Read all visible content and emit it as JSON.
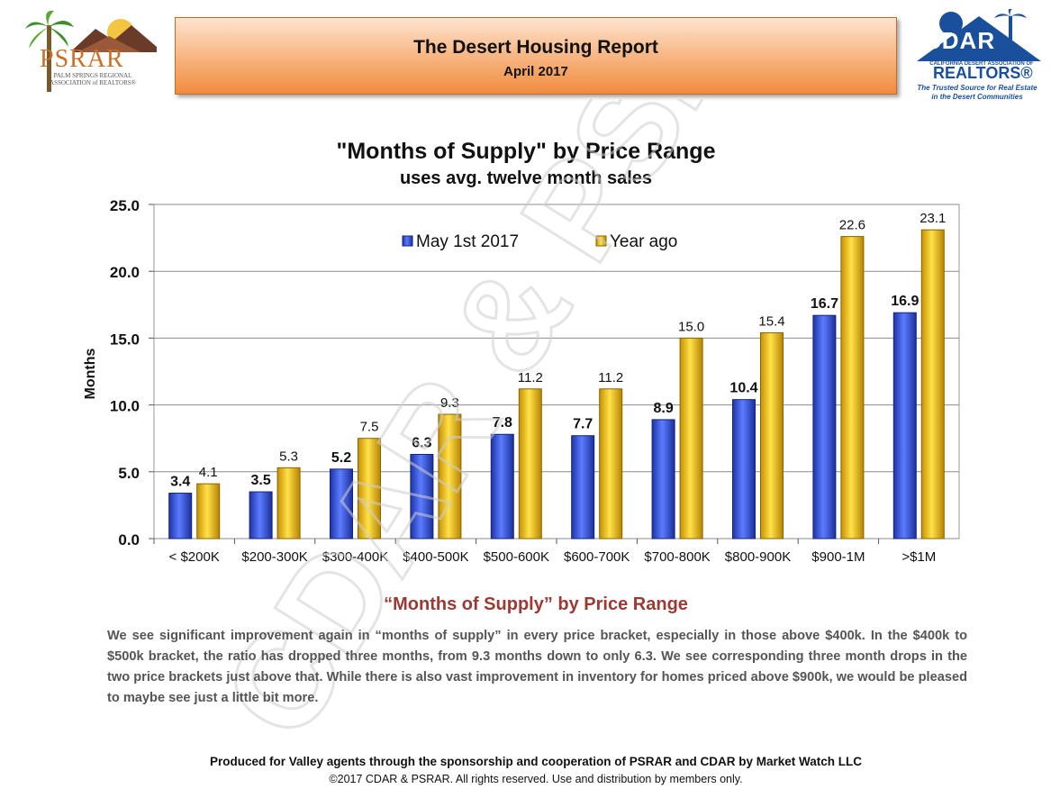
{
  "header": {
    "title": "The Desert Housing Report",
    "subtitle": "April 2017"
  },
  "logos": {
    "left_name": "PSRAR",
    "left_sub": "PALM SPRINGS REGIONAL ASSOCIATION of REALTORS®",
    "right_name": "CDAR",
    "right_small": "CALIFORNIA DESERT ASSOCIATION OF",
    "right_realtors": "REALTORS®",
    "right_tagline": "The Trusted Source for Real Estate in the Desert Communities"
  },
  "chart_data": {
    "type": "bar",
    "title": "\"Months of Supply\" by Price Range",
    "subtitle": "uses avg. twelve month sales",
    "xlabel": "",
    "ylabel": "Months",
    "ylim": [
      0,
      25
    ],
    "yticks": [
      "0.0",
      "5.0",
      "10.0",
      "15.0",
      "20.0",
      "25.0"
    ],
    "categories": [
      "< $200K",
      "$200-300K",
      "$300-400K",
      "$400-500K",
      "$500-600K",
      "$600-700K",
      "$700-800K",
      "$800-900K",
      "$900-1M",
      ">$1M"
    ],
    "series": [
      {
        "name": "May 1st 2017",
        "values": [
          3.4,
          3.5,
          5.2,
          6.3,
          7.8,
          7.7,
          8.9,
          10.4,
          16.7,
          16.9
        ],
        "labels": [
          "3.4",
          "3.5",
          "5.2",
          "6.3",
          "7.8",
          "7.7",
          "8.9",
          "10.4",
          "16.7",
          "16.9"
        ],
        "color": "#2d4fd6"
      },
      {
        "name": "Year ago",
        "values": [
          4.1,
          5.3,
          7.5,
          9.3,
          11.2,
          11.2,
          15.0,
          15.4,
          22.6,
          23.1
        ],
        "labels": [
          "4.1",
          "5.3",
          "7.5",
          "9.3",
          "11.2",
          "11.2",
          "15.0",
          "15.4",
          "22.6",
          "23.1"
        ],
        "color": "#f5c400"
      }
    ],
    "legend": "top-center",
    "grid": true
  },
  "watermark": "CDAR & PSRAR",
  "section": {
    "title": "“Months of Supply” by Price Range",
    "body": "We see significant improvement again in “months of supply” in every price bracket, especially in those above $400k. In the $400k to $500k bracket, the ratio has dropped three months, from 9.3 months down to only 6.3. We see corresponding three month drops in the two price brackets just above that. While there is also vast improvement in inventory for homes priced above $900k, we would be pleased to maybe see just a little bit more."
  },
  "footer": {
    "line1": "Produced for Valley agents through the sponsorship and cooperation of PSRAR and CDAR by Market Watch LLC",
    "line2": "©2017 CDAR & PSRAR.  All rights reserved.  Use and distribution by members only."
  },
  "colors": {
    "banner_orange": "#f08c3e",
    "section_title": "#9b3a34",
    "cdar_blue": "#1a4f9c"
  }
}
